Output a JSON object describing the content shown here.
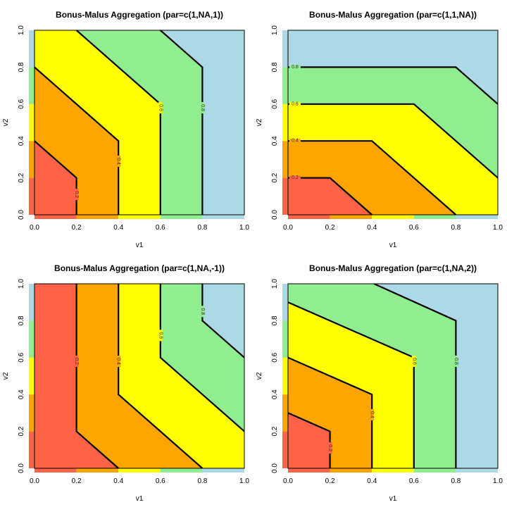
{
  "colors": {
    "band_0_0.2": "#FF6347",
    "band_0.2_0.4": "#FFA500",
    "band_0.4_0.6": "#FFFF00",
    "band_0.6_0.8": "#90EE90",
    "band_0.8_1": "#ADD8E6"
  },
  "chart_data": [
    {
      "type": "contour",
      "title": "Bonus-Malus Aggregation (par=c(1,NA,1))",
      "xlabel": "v1",
      "ylabel": "v2",
      "xlim": [
        0,
        1
      ],
      "ylim": [
        0,
        1
      ],
      "xticks": [
        "0.0",
        "0.2",
        "0.4",
        "0.6",
        "0.8",
        "1.0"
      ],
      "yticks": [
        "0.0",
        "0.2",
        "0.4",
        "0.6",
        "0.8",
        "1.0"
      ],
      "levels": [
        0.2,
        0.4,
        0.6,
        0.8
      ],
      "contours": [
        {
          "level": "0.2",
          "points": [
            [
              0,
              0.4
            ],
            [
              0.2,
              0.2
            ],
            [
              0.2,
              0
            ]
          ],
          "label_at": [
            0.2,
            0.11
          ],
          "label_vertical": true
        },
        {
          "level": "0.4",
          "points": [
            [
              0,
              0.8
            ],
            [
              0.4,
              0.4
            ],
            [
              0.4,
              0
            ]
          ],
          "label_at": [
            0.4,
            0.29
          ],
          "label_vertical": true
        },
        {
          "level": "0.6",
          "points": [
            [
              0.2,
              1
            ],
            [
              0.6,
              0.6
            ],
            [
              0.6,
              0
            ]
          ],
          "label_at": [
            0.6,
            0.58
          ],
          "label_vertical": true
        },
        {
          "level": "0.8",
          "points": [
            [
              0.6,
              1
            ],
            [
              0.8,
              0.8
            ],
            [
              0.8,
              0
            ]
          ],
          "label_at": [
            0.8,
            0.58
          ],
          "label_vertical": true
        }
      ]
    },
    {
      "type": "contour",
      "title": "Bonus-Malus Aggregation (par=c(1,1,NA))",
      "xlabel": "v1",
      "ylabel": "v2",
      "xlim": [
        0,
        1
      ],
      "ylim": [
        0,
        1
      ],
      "xticks": [
        "0.0",
        "0.2",
        "0.4",
        "0.6",
        "0.8",
        "1.0"
      ],
      "yticks": [
        "0.0",
        "0.2",
        "0.4",
        "0.6",
        "0.8",
        "1.0"
      ],
      "levels": [
        0.2,
        0.4,
        0.6,
        0.8
      ],
      "contours": [
        {
          "level": "0.2",
          "points": [
            [
              0,
              0.2
            ],
            [
              0.2,
              0.2
            ],
            [
              0.4,
              0
            ]
          ],
          "label_at": [
            0.03,
            0.2
          ],
          "label_vertical": false
        },
        {
          "level": "0.4",
          "points": [
            [
              0,
              0.4
            ],
            [
              0.4,
              0.4
            ],
            [
              0.8,
              0
            ]
          ],
          "label_at": [
            0.03,
            0.4
          ],
          "label_vertical": false
        },
        {
          "level": "0.6",
          "points": [
            [
              0,
              0.6
            ],
            [
              0.6,
              0.6
            ],
            [
              1,
              0.2
            ]
          ],
          "label_at": [
            0.03,
            0.6
          ],
          "label_vertical": false
        },
        {
          "level": "0.8",
          "points": [
            [
              0,
              0.8
            ],
            [
              0.8,
              0.8
            ],
            [
              1,
              0.6
            ]
          ],
          "label_at": [
            0.03,
            0.8
          ],
          "label_vertical": false
        }
      ]
    },
    {
      "type": "contour",
      "title": "Bonus-Malus Aggregation (par=c(1,NA,-1))",
      "xlabel": "v1",
      "ylabel": "v2",
      "xlim": [
        0,
        1
      ],
      "ylim": [
        0,
        1
      ],
      "xticks": [
        "0.0",
        "0.2",
        "0.4",
        "0.6",
        "0.8",
        "1.0"
      ],
      "yticks": [
        "0.0",
        "0.2",
        "0.4",
        "0.6",
        "0.8",
        "1.0"
      ],
      "levels": [
        0.2,
        0.4,
        0.6,
        0.8
      ],
      "contours": [
        {
          "level": "0.2",
          "points": [
            [
              0.2,
              1
            ],
            [
              0.2,
              0.2
            ],
            [
              0.4,
              0
            ]
          ],
          "label_at": [
            0.2,
            0.58
          ],
          "label_vertical": true
        },
        {
          "level": "0.4",
          "points": [
            [
              0.4,
              1
            ],
            [
              0.4,
              0.4
            ],
            [
              0.8,
              0
            ]
          ],
          "label_at": [
            0.4,
            0.58
          ],
          "label_vertical": true
        },
        {
          "level": "0.6",
          "points": [
            [
              0.6,
              1
            ],
            [
              0.6,
              0.6
            ],
            [
              1,
              0.2
            ]
          ],
          "label_at": [
            0.6,
            0.72
          ],
          "label_vertical": true
        },
        {
          "level": "0.8",
          "points": [
            [
              0.8,
              1
            ],
            [
              0.8,
              0.8
            ],
            [
              1,
              0.6
            ]
          ],
          "label_at": [
            0.8,
            0.85
          ],
          "label_vertical": true
        }
      ]
    },
    {
      "type": "contour",
      "title": "Bonus-Malus Aggregation (par=c(1,NA,2))",
      "xlabel": "v1",
      "ylabel": "v2",
      "xlim": [
        0,
        1
      ],
      "ylim": [
        0,
        1
      ],
      "xticks": [
        "0.0",
        "0.2",
        "0.4",
        "0.6",
        "0.8",
        "1.0"
      ],
      "yticks": [
        "0.0",
        "0.2",
        "0.4",
        "0.6",
        "0.8",
        "1.0"
      ],
      "levels": [
        0.2,
        0.4,
        0.6,
        0.8
      ],
      "contours": [
        {
          "level": "0.2",
          "points": [
            [
              0,
              0.3
            ],
            [
              0.2,
              0.2
            ],
            [
              0.2,
              0
            ]
          ],
          "label_at": [
            0.2,
            0.11
          ],
          "label_vertical": true
        },
        {
          "level": "0.4",
          "points": [
            [
              0,
              0.6
            ],
            [
              0.4,
              0.4
            ],
            [
              0.4,
              0
            ]
          ],
          "label_at": [
            0.4,
            0.29
          ],
          "label_vertical": true
        },
        {
          "level": "0.6",
          "points": [
            [
              0,
              0.9
            ],
            [
              0.6,
              0.6
            ],
            [
              0.6,
              0
            ]
          ],
          "label_at": [
            0.6,
            0.58
          ],
          "label_vertical": true
        },
        {
          "level": "0.8",
          "points": [
            [
              0.41,
              1
            ],
            [
              0.8,
              0.8
            ],
            [
              0.8,
              0
            ]
          ],
          "label_at": [
            0.8,
            0.58
          ],
          "label_vertical": true
        }
      ]
    }
  ]
}
